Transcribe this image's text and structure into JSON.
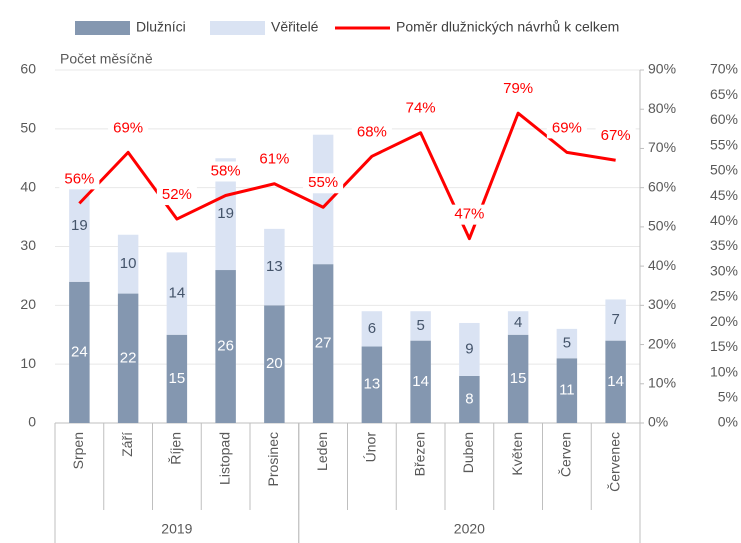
{
  "chart_data": {
    "type": "bar-line",
    "ylabel": "Počet měsíčně",
    "categories": [
      "Srpen",
      "Září",
      "Říjen",
      "Listopad",
      "Prosinec",
      "Leden",
      "Únor",
      "Březen",
      "Duben",
      "Květen",
      "Červen",
      "Červenec"
    ],
    "groups": [
      {
        "label": "2019",
        "count": 5
      },
      {
        "label": "2020",
        "count": 7
      }
    ],
    "series": [
      {
        "name": "Dlužníci",
        "color": "#8497b0",
        "values": [
          24,
          22,
          15,
          26,
          20,
          27,
          13,
          14,
          8,
          15,
          11,
          14
        ]
      },
      {
        "name": "Věřitelé",
        "color": "#dae3f3",
        "values": [
          19,
          10,
          14,
          19,
          13,
          22,
          6,
          5,
          9,
          4,
          5,
          7
        ],
        "value_labels": [
          "19",
          "10",
          "14",
          "19",
          "13",
          null,
          "6",
          "5",
          "9",
          "4",
          "5",
          "7"
        ]
      },
      {
        "name": "Poměr dlužnických návrhů k celkem",
        "color": "#ff0000",
        "axis": "y2",
        "values": [
          56,
          69,
          52,
          58,
          61,
          55,
          68,
          74,
          47,
          79,
          69,
          67
        ],
        "value_labels": [
          "56%",
          "69%",
          "52%",
          "58%",
          "61%",
          "55%",
          "68%",
          "74%",
          "47%",
          "79%",
          "69%",
          "67%"
        ]
      }
    ],
    "ylim": [
      0,
      60
    ],
    "yticks": [
      0,
      10,
      20,
      30,
      40,
      50,
      60
    ],
    "y2lim": [
      0,
      90
    ],
    "y2ticks": [
      {
        "value": 0,
        "label": "0%"
      },
      {
        "value": 10,
        "label": "10%"
      },
      {
        "value": 20,
        "label": "20%"
      },
      {
        "value": 30,
        "label": "30%"
      },
      {
        "value": 40,
        "label": "40%"
      },
      {
        "value": 50,
        "label": "50%"
      },
      {
        "value": 60,
        "label": "60%"
      },
      {
        "value": 70,
        "label": "70%"
      },
      {
        "value": 80,
        "label": "80%"
      },
      {
        "value": 90,
        "label": "90%"
      }
    ],
    "y3lim": [
      0,
      70
    ],
    "y3ticks": [
      {
        "value": 0,
        "label": "0%"
      },
      {
        "value": 5,
        "label": "5%"
      },
      {
        "value": 10,
        "label": "10%"
      },
      {
        "value": 15,
        "label": "15%"
      },
      {
        "value": 20,
        "label": "20%"
      },
      {
        "value": 25,
        "label": "25%"
      },
      {
        "value": 30,
        "label": "30%"
      },
      {
        "value": 35,
        "label": "35%"
      },
      {
        "value": 40,
        "label": "40%"
      },
      {
        "value": 45,
        "label": "45%"
      },
      {
        "value": 50,
        "label": "50%"
      },
      {
        "value": 55,
        "label": "55%"
      },
      {
        "value": 60,
        "label": "60%"
      },
      {
        "value": 65,
        "label": "65%"
      },
      {
        "value": 70,
        "label": "70%"
      }
    ],
    "grid": true
  }
}
